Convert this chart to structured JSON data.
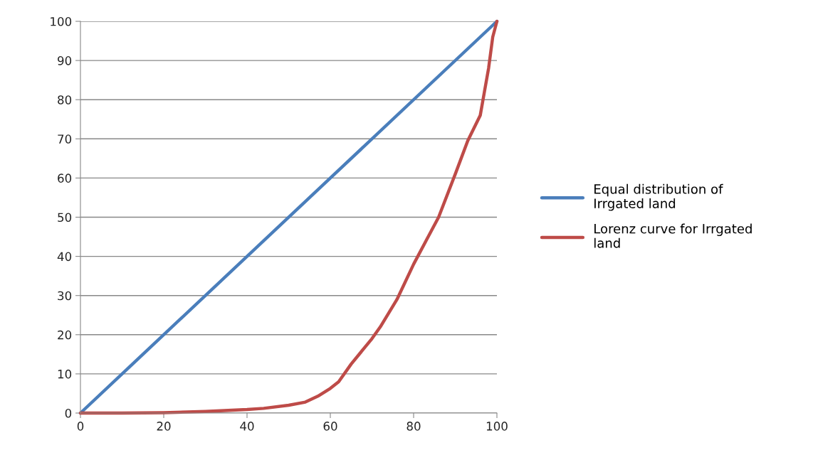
{
  "chart_data": {
    "type": "line",
    "series": [
      {
        "name": "Equal distribution of\nIrrgated land",
        "color": "#4a7ebb",
        "x": [
          0,
          100
        ],
        "values": [
          0,
          100
        ]
      },
      {
        "name": "Lorenz curve for Irrgated\nland",
        "color": "#be4b48",
        "x": [
          0,
          10,
          20,
          30,
          40,
          44,
          50,
          54,
          57,
          60,
          62,
          65,
          70,
          72,
          76,
          80,
          83,
          86,
          90,
          93,
          96,
          97,
          98,
          99,
          100
        ],
        "values": [
          0,
          0,
          0.1,
          0.4,
          0.9,
          1.2,
          2,
          2.8,
          4.3,
          6.3,
          8,
          12.5,
          19,
          22,
          29,
          38,
          44,
          50,
          61,
          69.5,
          76,
          82,
          88,
          96,
          100
        ]
      }
    ],
    "xlim": [
      0,
      100
    ],
    "xticks": [
      0,
      20,
      40,
      60,
      80,
      100
    ],
    "ylim": [
      0,
      100
    ],
    "yticks": [
      0,
      10,
      20,
      30,
      40,
      50,
      60,
      70,
      80,
      90,
      100
    ],
    "grid": "y",
    "legend": "right",
    "marker": "none",
    "line_style": "solid"
  }
}
